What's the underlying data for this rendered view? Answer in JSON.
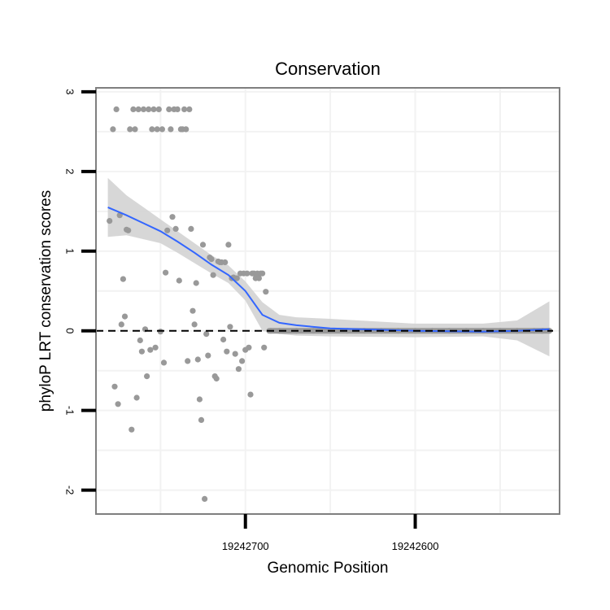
{
  "chart_data": {
    "type": "scatter",
    "title": "Conservation",
    "xlabel": "Genomic Position",
    "ylabel": "phyloP LRT conservation scores",
    "x_reversed": true,
    "xlim": [
      19242788,
      19242515
    ],
    "ylim": [
      -2.3,
      3.05
    ],
    "y_ticks": [
      -2,
      -1,
      0,
      1,
      2,
      3
    ],
    "x_ticks": [
      19242700,
      19242600
    ],
    "x_tick_labels": [
      "19242700",
      "19242600"
    ],
    "reference_line": {
      "y": 0,
      "style": "dashed"
    },
    "colors": {
      "points": "#999999",
      "smooth": "#3366ff",
      "band": "#d3d3d3",
      "panel_border": "#7f7f7f",
      "grid": "#f2f2f2"
    },
    "series": [
      {
        "name": "scores",
        "type": "scatter",
        "points": [
          [
            19242780,
            1.38
          ],
          [
            19242778,
            2.53
          ],
          [
            19242777,
            -0.7
          ],
          [
            19242776,
            2.78
          ],
          [
            19242775,
            -0.92
          ],
          [
            19242774,
            1.45
          ],
          [
            19242773,
            0.08
          ],
          [
            19242772,
            0.65
          ],
          [
            19242771,
            0.18
          ],
          [
            19242770,
            1.27
          ],
          [
            19242769,
            1.26
          ],
          [
            19242768,
            2.53
          ],
          [
            19242767,
            -1.24
          ],
          [
            19242766,
            2.78
          ],
          [
            19242765,
            2.53
          ],
          [
            19242764,
            -0.84
          ],
          [
            19242763,
            2.78
          ],
          [
            19242762,
            -0.12
          ],
          [
            19242761,
            -0.26
          ],
          [
            19242760,
            2.78
          ],
          [
            19242759,
            0.02
          ],
          [
            19242758,
            -0.57
          ],
          [
            19242757,
            2.78
          ],
          [
            19242756,
            -0.24
          ],
          [
            19242755,
            2.53
          ],
          [
            19242754,
            2.78
          ],
          [
            19242753,
            -0.21
          ],
          [
            19242752,
            2.53
          ],
          [
            19242751,
            2.78
          ],
          [
            19242750,
            -0.01
          ],
          [
            19242749,
            2.53
          ],
          [
            19242748,
            -0.4
          ],
          [
            19242747,
            0.73
          ],
          [
            19242746,
            1.26
          ],
          [
            19242745,
            2.78
          ],
          [
            19242744,
            2.53
          ],
          [
            19242743,
            1.43
          ],
          [
            19242742,
            2.78
          ],
          [
            19242741,
            1.28
          ],
          [
            19242740,
            2.78
          ],
          [
            19242739,
            0.63
          ],
          [
            19242738,
            2.53
          ],
          [
            19242737,
            2.53
          ],
          [
            19242736,
            2.78
          ],
          [
            19242735,
            2.53
          ],
          [
            19242734,
            -0.38
          ],
          [
            19242733,
            2.78
          ],
          [
            19242732,
            1.28
          ],
          [
            19242731,
            0.25
          ],
          [
            19242730,
            0.08
          ],
          [
            19242729,
            0.6
          ],
          [
            19242728,
            -0.36
          ],
          [
            19242727,
            -0.86
          ],
          [
            19242726,
            -1.12
          ],
          [
            19242725,
            1.08
          ],
          [
            19242724,
            -2.11
          ],
          [
            19242723,
            -0.04
          ],
          [
            19242722,
            -0.31
          ],
          [
            19242721,
            0.92
          ],
          [
            19242720,
            0.9
          ],
          [
            19242719,
            0.7
          ],
          [
            19242718,
            -0.57
          ],
          [
            19242717,
            -0.6
          ],
          [
            19242716,
            0.87
          ],
          [
            19242715,
            0.86
          ],
          [
            19242714,
            0.86
          ],
          [
            19242713,
            -0.11
          ],
          [
            19242712,
            0.86
          ],
          [
            19242711,
            -0.26
          ],
          [
            19242710,
            1.08
          ],
          [
            19242709,
            0.05
          ],
          [
            19242708,
            0.66
          ],
          [
            19242707,
            0.67
          ],
          [
            19242706,
            -0.29
          ],
          [
            19242705,
            0.66
          ],
          [
            19242704,
            -0.48
          ],
          [
            19242703,
            0.72
          ],
          [
            19242702,
            -0.38
          ],
          [
            19242701,
            0.72
          ],
          [
            19242700,
            -0.24
          ],
          [
            19242699,
            0.72
          ],
          [
            19242698,
            -0.21
          ],
          [
            19242697,
            -0.8
          ],
          [
            19242696,
            0.72
          ],
          [
            19242695,
            0.72
          ],
          [
            19242694,
            0.66
          ],
          [
            19242693,
            0.72
          ],
          [
            19242692,
            0.66
          ],
          [
            19242691,
            0.72
          ],
          [
            19242690,
            0.72
          ],
          [
            19242689,
            -0.21
          ],
          [
            19242688,
            0.49
          ],
          [
            19242685,
            0
          ],
          [
            19242680,
            0
          ],
          [
            19242670,
            0
          ],
          [
            19242660,
            0
          ],
          [
            19242650,
            0
          ],
          [
            19242640,
            0
          ],
          [
            19242630,
            0
          ],
          [
            19242620,
            0
          ],
          [
            19242610,
            0
          ],
          [
            19242600,
            0
          ],
          [
            19242590,
            0
          ],
          [
            19242580,
            0
          ],
          [
            19242570,
            0
          ],
          [
            19242560,
            0
          ],
          [
            19242550,
            0
          ],
          [
            19242540,
            0
          ],
          [
            19242530,
            0
          ],
          [
            19242525,
            0
          ],
          [
            19242521,
            0
          ]
        ]
      },
      {
        "name": "smooth",
        "type": "line",
        "x": [
          19242781,
          19242770,
          19242760,
          19242750,
          19242740,
          19242730,
          19242720,
          19242710,
          19242700,
          19242690,
          19242680,
          19242670,
          19242650,
          19242600,
          19242560,
          19242540,
          19242521
        ],
        "y": [
          1.55,
          1.45,
          1.35,
          1.25,
          1.12,
          0.98,
          0.83,
          0.7,
          0.5,
          0.2,
          0.1,
          0.07,
          0.03,
          0.0,
          -0.01,
          0.0,
          0.02
        ],
        "lower": [
          1.18,
          1.2,
          1.15,
          1.1,
          0.98,
          0.85,
          0.72,
          0.6,
          0.38,
          0.0,
          -0.04,
          -0.06,
          -0.07,
          -0.08,
          -0.07,
          -0.12,
          -0.32
        ],
        "upper": [
          1.92,
          1.7,
          1.55,
          1.4,
          1.25,
          1.1,
          0.95,
          0.82,
          0.62,
          0.36,
          0.2,
          0.17,
          0.15,
          0.09,
          0.09,
          0.13,
          0.37
        ]
      }
    ]
  }
}
